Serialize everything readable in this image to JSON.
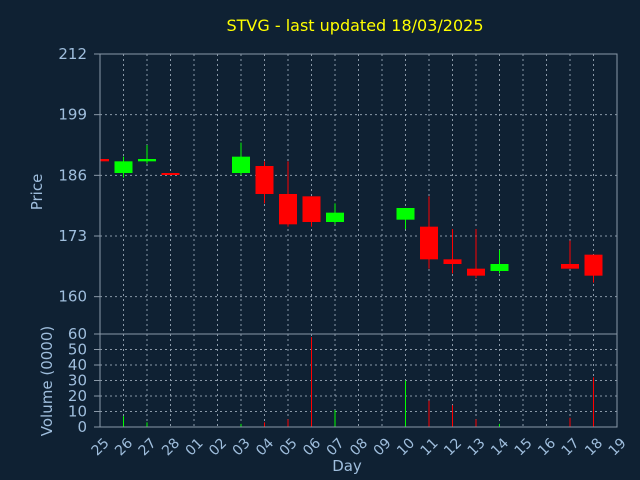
{
  "chart_data": {
    "type": "candlestick",
    "title": "STVG - last updated 18/03/2025",
    "colors": {
      "background": "#0f2133",
      "up": "#00ff00",
      "down": "#ff0000",
      "grid": "#8a99a8",
      "text": "#9fbedd",
      "title": "#ffff00"
    },
    "price_axis": {
      "label": "Price",
      "ylim": [
        152,
        212
      ],
      "ticks": [
        212,
        199,
        186,
        173,
        160
      ]
    },
    "volume_axis": {
      "label": "Volume (0000)",
      "ylim": [
        0,
        60
      ],
      "ticks": [
        60,
        50,
        40,
        30,
        20,
        10,
        0
      ]
    },
    "xlabel": "Day",
    "x_ticks": [
      "25",
      "26",
      "27",
      "28",
      "01",
      "02",
      "03",
      "04",
      "05",
      "06",
      "07",
      "08",
      "09",
      "10",
      "11",
      "12",
      "13",
      "14",
      "15",
      "16",
      "17",
      "18",
      "19"
    ],
    "candles": [
      {
        "day": "25",
        "open": 189.5,
        "high": 189.5,
        "low": 189.0,
        "close": 189.0
      },
      {
        "day": "26",
        "open": 186.5,
        "high": 190.0,
        "low": 185.5,
        "close": 189.0
      },
      {
        "day": "27",
        "open": 189.0,
        "high": 192.5,
        "low": 188.5,
        "close": 189.5
      },
      {
        "day": "28",
        "open": 186.5,
        "high": 186.5,
        "low": 186.0,
        "close": 186.2
      },
      {
        "day": "03",
        "open": 186.5,
        "high": 193.0,
        "low": 186.0,
        "close": 190.0
      },
      {
        "day": "04",
        "open": 188.0,
        "high": 189.0,
        "low": 180.0,
        "close": 182.0
      },
      {
        "day": "05",
        "open": 182.0,
        "high": 189.0,
        "low": 175.0,
        "close": 175.5
      },
      {
        "day": "06",
        "open": 181.5,
        "high": 181.5,
        "low": 175.0,
        "close": 176.0
      },
      {
        "day": "07",
        "open": 176.0,
        "high": 180.0,
        "low": 175.5,
        "close": 178.0
      },
      {
        "day": "10",
        "open": 176.5,
        "high": 179.0,
        "low": 174.5,
        "close": 179.0
      },
      {
        "day": "11",
        "open": 175.0,
        "high": 181.5,
        "low": 166.0,
        "close": 168.0
      },
      {
        "day": "12",
        "open": 168.0,
        "high": 174.5,
        "low": 165.0,
        "close": 167.0
      },
      {
        "day": "13",
        "open": 166.0,
        "high": 174.5,
        "low": 164.0,
        "close": 164.5
      },
      {
        "day": "14",
        "open": 165.5,
        "high": 170.0,
        "low": 165.0,
        "close": 167.0
      },
      {
        "day": "17",
        "open": 167.0,
        "high": 172.0,
        "low": 166.0,
        "close": 166.0
      },
      {
        "day": "18",
        "open": 169.0,
        "high": 169.0,
        "low": 163.0,
        "close": 164.5
      }
    ],
    "volume": [
      {
        "day": "25",
        "value": 0,
        "dir": "down"
      },
      {
        "day": "26",
        "value": 7,
        "dir": "up"
      },
      {
        "day": "27",
        "value": 3,
        "dir": "up"
      },
      {
        "day": "28",
        "value": 0,
        "dir": "up"
      },
      {
        "day": "03",
        "value": 2,
        "dir": "up"
      },
      {
        "day": "04",
        "value": 3,
        "dir": "down"
      },
      {
        "day": "05",
        "value": 5,
        "dir": "down"
      },
      {
        "day": "06",
        "value": 58,
        "dir": "down"
      },
      {
        "day": "07",
        "value": 11,
        "dir": "up"
      },
      {
        "day": "10",
        "value": 30,
        "dir": "up"
      },
      {
        "day": "11",
        "value": 17,
        "dir": "down"
      },
      {
        "day": "12",
        "value": 14,
        "dir": "down"
      },
      {
        "day": "13",
        "value": 5,
        "dir": "down"
      },
      {
        "day": "14",
        "value": 2,
        "dir": "up"
      },
      {
        "day": "17",
        "value": 6,
        "dir": "down"
      },
      {
        "day": "18",
        "value": 32,
        "dir": "down"
      }
    ]
  }
}
